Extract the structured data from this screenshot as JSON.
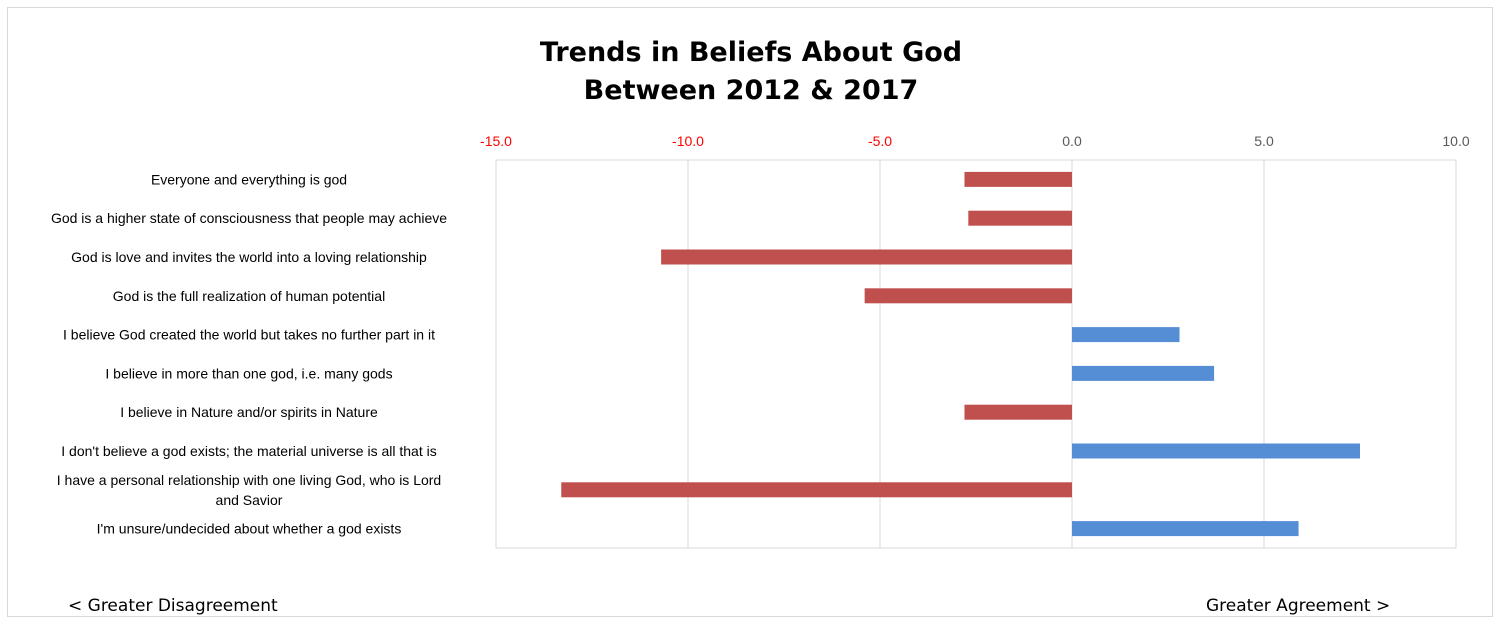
{
  "chart_data": {
    "type": "bar",
    "orientation": "horizontal",
    "title": [
      "Trends in Beliefs About God",
      "Between 2012 & 2017"
    ],
    "categories": [
      "Everyone and everything is god",
      "God is a higher state of consciousness that people may achieve",
      "God is love and invites the world into a loving relationship",
      "God is the full realization of human potential",
      "I believe God created the world but takes no further part in it",
      "I believe in more than one god, i.e. many gods",
      "I believe in Nature and/or spirits in Nature",
      "I don't believe a god exists; the material universe is all that is",
      "I have a personal relationship with one living God, who is Lord and Savior",
      "I'm unsure/undecided about whether a god exists"
    ],
    "values": [
      -2.8,
      -2.7,
      -10.7,
      -5.4,
      2.8,
      3.7,
      -2.8,
      7.5,
      -13.3,
      5.9
    ],
    "xlim": [
      -15,
      10
    ],
    "ticks": [
      -15.0,
      -10.0,
      -5.0,
      0.0,
      5.0,
      10.0
    ],
    "tick_labels": [
      "-15.0",
      "-10.0",
      "-5.0",
      "0.0",
      "5.0",
      "10.0"
    ],
    "axis_position": "top",
    "grid": true,
    "colors": {
      "negative": "#c0504d",
      "positive": "#558ed5",
      "negative_tick": "#ff0000",
      "positive_tick": "#595959",
      "grid": "#d9d9d9"
    }
  },
  "annotations": {
    "left": "< Greater Disagreement",
    "right": "Greater Agreement >"
  }
}
